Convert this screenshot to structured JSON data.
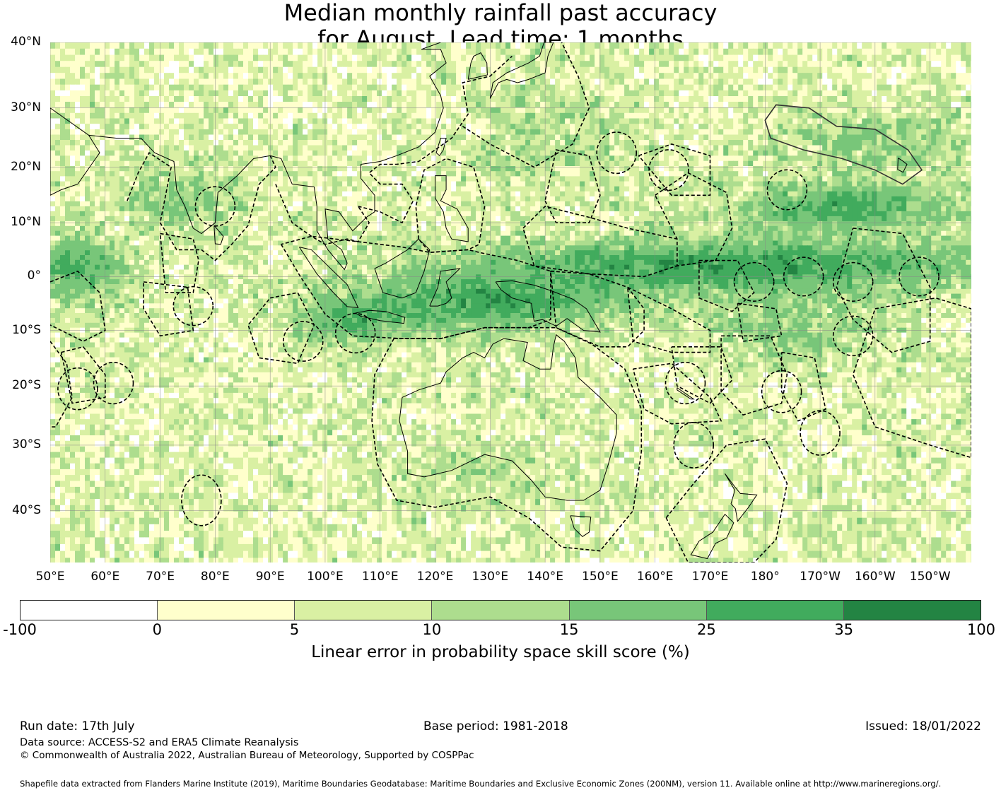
{
  "title_line1": "Median monthly rainfall past accuracy",
  "title_line2": "for August. Lead time: 1 months",
  "map": {
    "lat_range": [
      -47,
      40
    ],
    "lon_range": [
      50,
      217.5
    ],
    "lat_labels": [
      {
        "lat": 40,
        "text": "40°N"
      },
      {
        "lat": 30,
        "text": "30°N"
      },
      {
        "lat": 20,
        "text": "20°N"
      },
      {
        "lat": 10,
        "text": "10°N"
      },
      {
        "lat": 0,
        "text": "0°"
      },
      {
        "lat": -10,
        "text": "10°S"
      },
      {
        "lat": -20,
        "text": "20°S"
      },
      {
        "lat": -30,
        "text": "30°S"
      },
      {
        "lat": -40,
        "text": "40°S"
      }
    ],
    "lon_labels": [
      {
        "lon": 50,
        "text": "50°E"
      },
      {
        "lon": 60,
        "text": "60°E"
      },
      {
        "lon": 70,
        "text": "70°E"
      },
      {
        "lon": 80,
        "text": "80°E"
      },
      {
        "lon": 90,
        "text": "90°E"
      },
      {
        "lon": 100,
        "text": "100°E"
      },
      {
        "lon": 110,
        "text": "110°E"
      },
      {
        "lon": 120,
        "text": "120°E"
      },
      {
        "lon": 130,
        "text": "130°E"
      },
      {
        "lon": 140,
        "text": "140°E"
      },
      {
        "lon": 150,
        "text": "150°E"
      },
      {
        "lon": 160,
        "text": "160°E"
      },
      {
        "lon": 170,
        "text": "170°E"
      },
      {
        "lon": 180,
        "text": "180°"
      },
      {
        "lon": 190,
        "text": "170°W"
      },
      {
        "lon": 200,
        "text": "160°W"
      },
      {
        "lon": 210,
        "text": "150°W"
      }
    ],
    "grid": true
  },
  "colorbar": {
    "colors": [
      "#ffffff",
      "#ffffcc",
      "#d9f0a3",
      "#addd8e",
      "#78c679",
      "#41ab5d",
      "#238443"
    ],
    "ticks": [
      "-100",
      "0",
      "5",
      "10",
      "15",
      "25",
      "35",
      "100"
    ],
    "label": "Linear error in probability space skill score (%)"
  },
  "footer": {
    "run_date": "Run date: 17th July",
    "base_period": "Base period: 1981-2018",
    "issued": "Issued: 18/01/2022",
    "data_source": "Data source: ACCESS-S2 and ERA5 Climate Reanalysis",
    "copyright": "© Commonwealth of Australia 2022, Australian Bureau of Meteorology, Supported by COSPPac",
    "shapefile": "Shapefile data extracted from Flanders Marine Institute (2019), Maritime Boundaries Geodatabase: Maritime Boundaries and Exclusive Economic Zones (200NM), version 11. Available online at http://www.marineregions.org/."
  }
}
